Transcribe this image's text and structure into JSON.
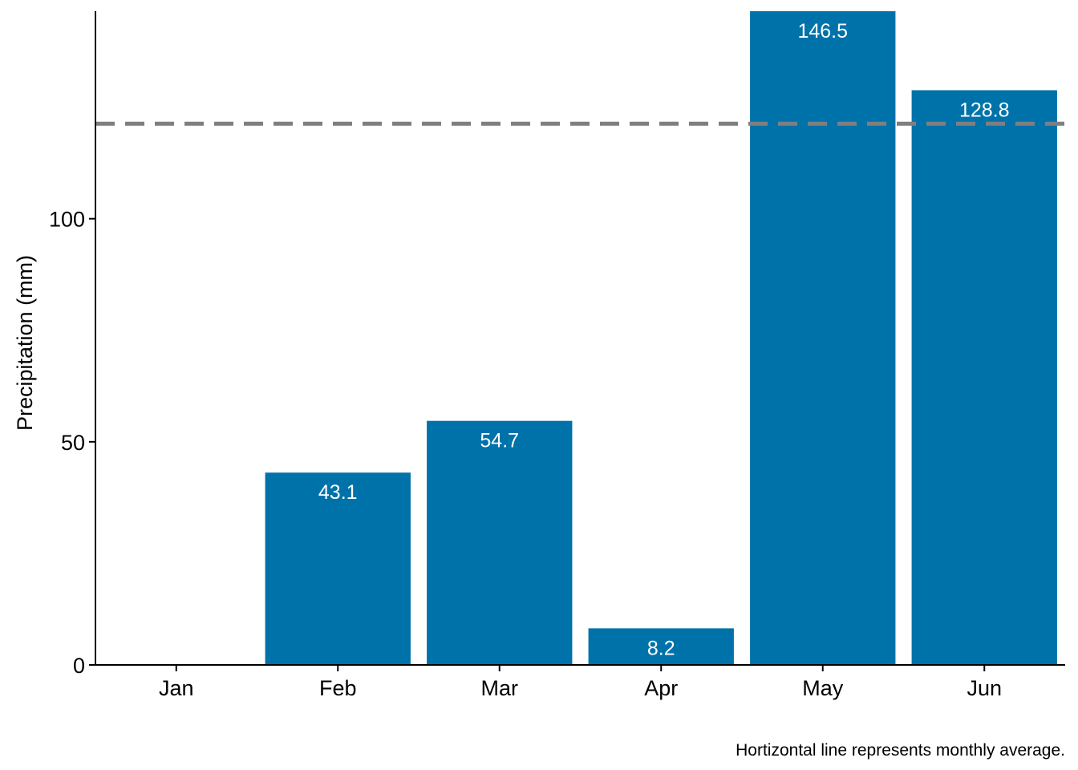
{
  "chart_data": {
    "type": "bar",
    "categories": [
      "Jan",
      "Feb",
      "Mar",
      "Apr",
      "May",
      "Jun"
    ],
    "values": [
      0,
      43.1,
      54.7,
      8.2,
      146.5,
      128.8
    ],
    "data_labels": [
      "",
      "43.1",
      "54.7",
      "8.2",
      "146.5",
      "128.8"
    ],
    "xlabel": "",
    "ylabel": "Precipitation (mm)",
    "ylim": [
      0,
      146.5
    ],
    "yticks": [
      0,
      50,
      100
    ],
    "ytick_labels": [
      "0",
      "50",
      "100"
    ],
    "reference_line": {
      "value": 121.3,
      "style": "dashed",
      "color": "#7f7f7f"
    },
    "caption": "Hortizontal line represents monthly average.",
    "bar_color": "#0072aa",
    "grid": false,
    "legend": "none"
  }
}
